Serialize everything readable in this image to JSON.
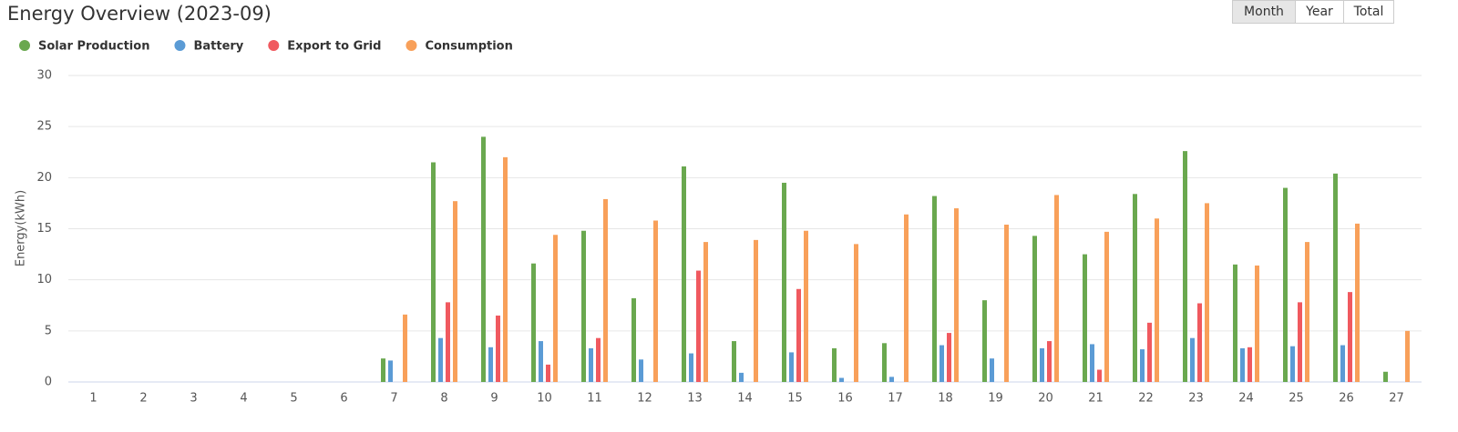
{
  "controls": {
    "buttons": [
      "Month",
      "Year",
      "Total"
    ],
    "selected": "Month"
  },
  "chart_data": {
    "type": "bar",
    "title": "Energy Overview (2023-09)",
    "y_label": "Energy(kWh)",
    "categories": [
      "1",
      "2",
      "3",
      "4",
      "5",
      "6",
      "7",
      "8",
      "9",
      "10",
      "11",
      "12",
      "13",
      "14",
      "15",
      "16",
      "17",
      "18",
      "19",
      "20",
      "21",
      "22",
      "23",
      "24",
      "25",
      "26",
      "27"
    ],
    "series": [
      {
        "name": "Solar Production",
        "color": "#6aa84f",
        "values": [
          0,
          0,
          0,
          0,
          0,
          0,
          2.3,
          21.5,
          24.0,
          11.6,
          14.8,
          8.2,
          21.1,
          4.0,
          19.5,
          3.3,
          3.8,
          18.2,
          8.0,
          14.3,
          12.5,
          18.4,
          22.6,
          11.5,
          19.0,
          20.4,
          1.0
        ]
      },
      {
        "name": "Battery",
        "color": "#5b9bd5",
        "values": [
          0,
          0,
          0,
          0,
          0,
          0,
          2.1,
          4.3,
          3.4,
          4.0,
          3.3,
          2.2,
          2.8,
          0.9,
          2.9,
          0.4,
          0.5,
          3.6,
          2.3,
          3.3,
          3.7,
          3.2,
          4.3,
          3.3,
          3.5,
          3.6,
          0
        ]
      },
      {
        "name": "Export to Grid",
        "color": "#f0595f",
        "values": [
          0,
          0,
          0,
          0,
          0,
          0,
          0,
          7.8,
          6.5,
          1.7,
          4.3,
          0,
          10.9,
          0,
          9.1,
          0,
          0,
          4.8,
          0,
          4.0,
          1.2,
          5.8,
          7.7,
          3.4,
          7.8,
          8.8,
          0
        ]
      },
      {
        "name": "Consumption",
        "color": "#f8a05a",
        "values": [
          0,
          0,
          0,
          0,
          0,
          0,
          6.6,
          17.7,
          22.0,
          14.4,
          17.9,
          15.8,
          13.7,
          13.9,
          14.8,
          13.5,
          16.4,
          17.0,
          15.4,
          18.3,
          14.7,
          16.0,
          17.5,
          11.4,
          13.7,
          15.5,
          5.0
        ]
      }
    ],
    "ylim": [
      0,
      30
    ],
    "yticks": [
      0,
      5,
      10,
      15,
      20,
      25,
      30
    ],
    "grid": true
  }
}
